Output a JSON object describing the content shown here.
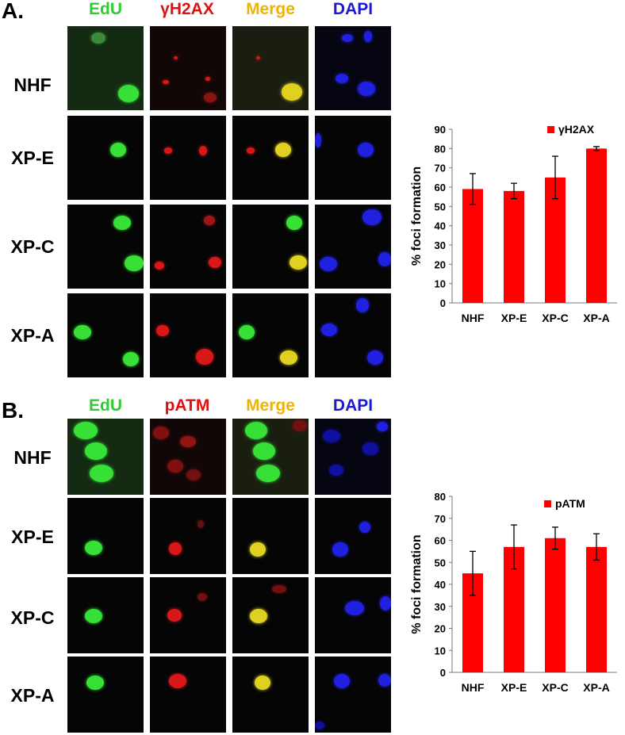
{
  "panelA": {
    "letter": "A.",
    "channels": [
      "EdU",
      "γH2AX",
      "Merge",
      "DAPI"
    ],
    "rows": [
      "NHF",
      "XP-E",
      "XP-C",
      "XP-A"
    ],
    "chart_data": {
      "type": "bar",
      "categories": [
        "NHF",
        "XP-E",
        "XP-C",
        "XP-A"
      ],
      "series": [
        {
          "name": "γH2AX",
          "values": [
            59,
            58,
            65,
            80
          ],
          "errors": [
            8,
            4,
            11,
            1
          ]
        }
      ],
      "ylabel": "% foci formation",
      "ylim": [
        0,
        90
      ],
      "yticks": [
        0,
        10,
        20,
        30,
        40,
        50,
        60,
        70,
        80,
        90
      ],
      "color": "#ff0000",
      "legend": "top-right"
    }
  },
  "panelB": {
    "letter": "B.",
    "channels": [
      "EdU",
      "pATM",
      "Merge",
      "DAPI"
    ],
    "rows": [
      "NHF",
      "XP-E",
      "XP-C",
      "XP-A"
    ],
    "chart_data": {
      "type": "bar",
      "categories": [
        "NHF",
        "XP-E",
        "XP-C",
        "XP-A"
      ],
      "series": [
        {
          "name": "pATM",
          "values": [
            45,
            57,
            61,
            57
          ],
          "errors": [
            10,
            10,
            5,
            6
          ]
        }
      ],
      "ylabel": "% foci formation",
      "ylim": [
        0,
        80
      ],
      "yticks": [
        0,
        10,
        20,
        30,
        40,
        50,
        60,
        70,
        80
      ],
      "color": "#ff0000",
      "legend": "top-right"
    }
  },
  "colors": {
    "edu": "#2ecc2e",
    "red_marker": "#e01010",
    "merge": "#f0b400",
    "dapi": "#1a1ad0"
  }
}
